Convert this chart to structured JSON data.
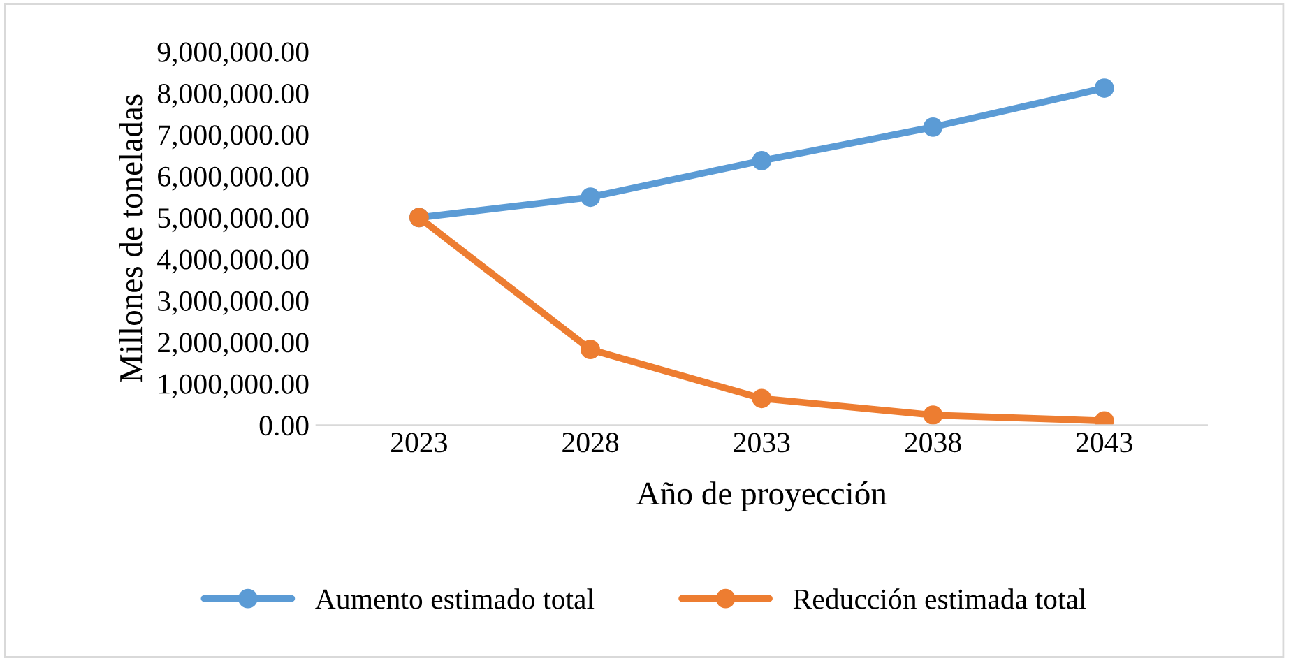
{
  "chart_data": {
    "type": "line",
    "xlabel": "Año de proyección",
    "ylabel": "Millones de toneladas",
    "categories": [
      "2023",
      "2028",
      "2033",
      "2038",
      "2043"
    ],
    "series": [
      {
        "name": "Aumento estimado total",
        "color": "#5b9bd5",
        "values": [
          5000000,
          5490000,
          6370000,
          7180000,
          8120000
        ]
      },
      {
        "name": "Reducción estimada total",
        "color": "#ed7d31",
        "values": [
          5000000,
          1820000,
          640000,
          240000,
          100000
        ]
      }
    ],
    "ylim": [
      0,
      9000000
    ],
    "yticks": [
      {
        "value": 0,
        "label": "0.00"
      },
      {
        "value": 1000000,
        "label": "1,000,000.00"
      },
      {
        "value": 2000000,
        "label": "2,000,000.00"
      },
      {
        "value": 3000000,
        "label": "3,000,000.00"
      },
      {
        "value": 4000000,
        "label": "4,000,000.00"
      },
      {
        "value": 5000000,
        "label": "5,000,000.00"
      },
      {
        "value": 6000000,
        "label": "6,000,000.00"
      },
      {
        "value": 7000000,
        "label": "7,000,000.00"
      },
      {
        "value": 8000000,
        "label": "8,000,000.00"
      },
      {
        "value": 9000000,
        "label": "9,000,000.00"
      }
    ],
    "grid": false,
    "legend": "bottom",
    "marker": "circle",
    "line_style": "solid"
  }
}
